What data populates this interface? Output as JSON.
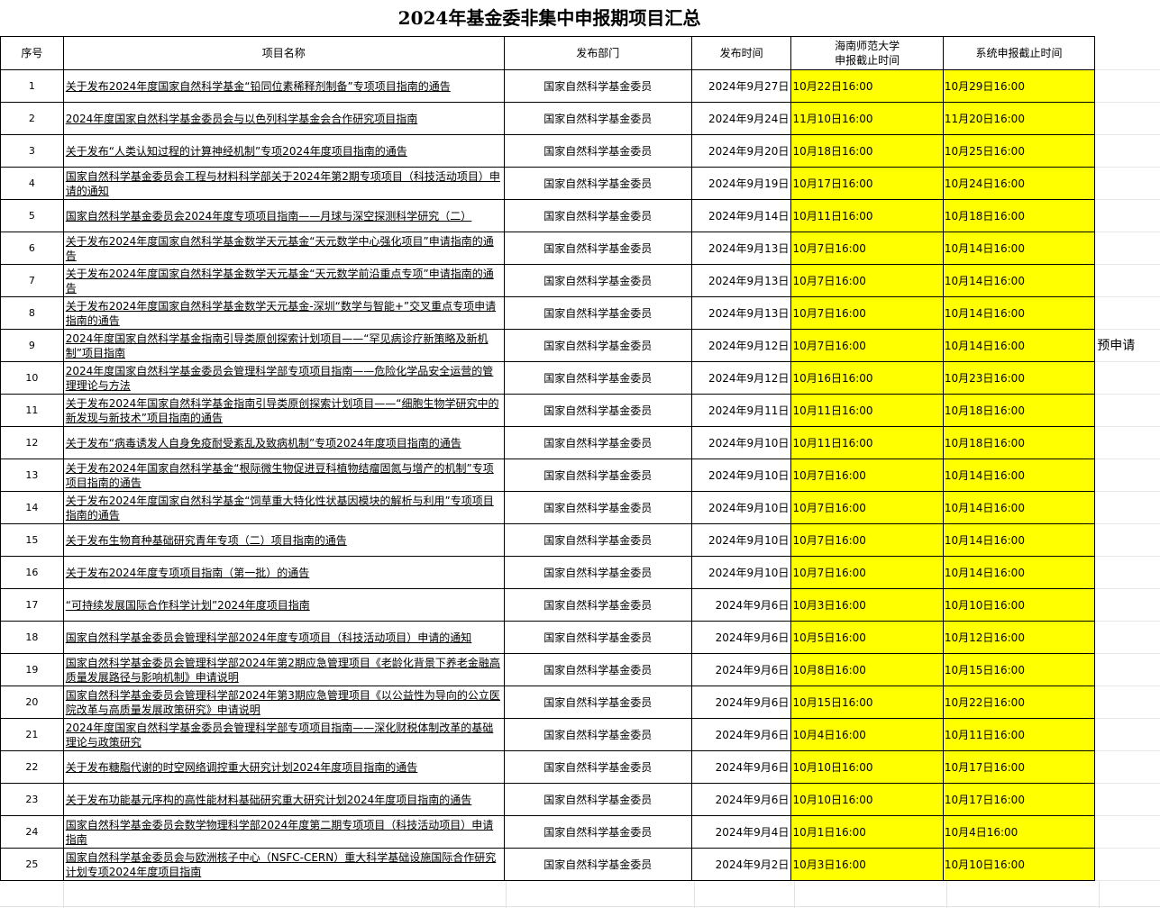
{
  "title": "2024年基金委非集中申报期项目汇总",
  "headers": {
    "no": "序号",
    "name": "项目名称",
    "dept": "发布部门",
    "date": "发布时间",
    "hnnu_deadline_1": "海南师范大学",
    "hnnu_deadline_2": "申报截止时间",
    "system_deadline": "系统申报截止时间"
  },
  "highlight_color": "#ffff00",
  "rows": [
    {
      "no": "1",
      "name": "关于发布2024年度国家自然科学基金“铅同位素稀释剂制备”专项项目指南的通告",
      "dept": "国家自然科学基金委员",
      "date": "2024年9月27日",
      "hnnu": "10月22日16:00",
      "system": "10月29日16:00",
      "note": ""
    },
    {
      "no": "2",
      "name": "2024年度国家自然科学基金委员会与以色列科学基金会合作研究项目指南",
      "dept": "国家自然科学基金委员",
      "date": "2024年9月24日",
      "hnnu": "11月10日16:00",
      "system": "11月20日16:00",
      "note": ""
    },
    {
      "no": "3",
      "name": "关于发布“人类认知过程的计算神经机制”专项2024年度项目指南的通告",
      "dept": "国家自然科学基金委员",
      "date": "2024年9月20日",
      "hnnu": "10月18日16:00",
      "system": "10月25日16:00",
      "note": ""
    },
    {
      "no": "4",
      "name": "国家自然科学基金委员会工程与材料科学部关于2024年第2期专项项目（科技活动项目）申请的通知",
      "dept": "国家自然科学基金委员",
      "date": "2024年9月19日",
      "hnnu": "10月17日16:00",
      "system": "10月24日16:00",
      "note": ""
    },
    {
      "no": "5",
      "name": "国家自然科学基金委员会2024年度专项项目指南——月球与深空探测科学研究（二）",
      "dept": "国家自然科学基金委员",
      "date": "2024年9月14日",
      "hnnu": "10月11日16:00",
      "system": "10月18日16:00",
      "note": ""
    },
    {
      "no": "6",
      "name": "关于发布2024年度国家自然科学基金数学天元基金“天元数学中心强化项目”申请指南的通告",
      "dept": "国家自然科学基金委员",
      "date": "2024年9月13日",
      "hnnu": "10月7日16:00",
      "system": "10月14日16:00",
      "note": ""
    },
    {
      "no": "7",
      "name": "关于发布2024年度国家自然科学基金数学天元基金“天元数学前沿重点专项”申请指南的通告",
      "dept": "国家自然科学基金委员",
      "date": "2024年9月13日",
      "hnnu": "10月7日16:00",
      "system": "10月14日16:00",
      "note": ""
    },
    {
      "no": "8",
      "name": "关于发布2024年度国家自然科学基金数学天元基金-深圳“数学与智能+”交叉重点专项申请指南的通告",
      "dept": "国家自然科学基金委员",
      "date": "2024年9月13日",
      "hnnu": "10月7日16:00",
      "system": "10月14日16:00",
      "note": ""
    },
    {
      "no": "9",
      "name": "2024年度国家自然科学基金指南引导类原创探索计划项目——“罕见病诊疗新策略及新机制”项目指南",
      "dept": "国家自然科学基金委员",
      "date": "2024年9月12日",
      "hnnu": "10月7日16:00",
      "system": "10月14日16:00",
      "note": "预申请"
    },
    {
      "no": "10",
      "name": "2024年度国家自然科学基金委员会管理科学部专项项目指南——危险化学品安全运营的管理理论与方法",
      "dept": "国家自然科学基金委员",
      "date": "2024年9月12日",
      "hnnu": "10月16日16:00",
      "system": "10月23日16:00",
      "note": ""
    },
    {
      "no": "11",
      "name": "关于发布2024年国家自然科学基金指南引导类原创探索计划项目——“细胞生物学研究中的新发现与新技术”项目指南的通告",
      "dept": "国家自然科学基金委员",
      "date": "2024年9月11日",
      "hnnu": "10月11日16:00",
      "system": "10月18日16:00",
      "note": ""
    },
    {
      "no": "12",
      "name": "关于发布“病毒诱发人自身免疫耐受紊乱及致病机制”专项2024年度项目指南的通告",
      "dept": "国家自然科学基金委员",
      "date": "2024年9月10日",
      "hnnu": "10月11日16:00",
      "system": "10月18日16:00",
      "note": ""
    },
    {
      "no": "13",
      "name": "关于发布2024年国家自然科学基金“根际微生物促进豆科植物结瘤固氮与增产的机制”专项项目指南的通告",
      "dept": "国家自然科学基金委员",
      "date": "2024年9月10日",
      "hnnu": "10月7日16:00",
      "system": "10月14日16:00",
      "note": ""
    },
    {
      "no": "14",
      "name": "关于发布2024年度国家自然科学基金“饲草重大特化性状基因模块的解析与利用”专项项目指南的通告",
      "dept": "国家自然科学基金委员",
      "date": "2024年9月10日",
      "hnnu": "10月7日16:00",
      "system": "10月14日16:00",
      "note": ""
    },
    {
      "no": "15",
      "name": "关于发布生物育种基础研究青年专项（二）项目指南的通告",
      "dept": "国家自然科学基金委员",
      "date": "2024年9月10日",
      "hnnu": "10月7日16:00",
      "system": "10月14日16:00",
      "note": ""
    },
    {
      "no": "16",
      "name": "关于发布2024年度专项项目指南（第一批）的通告",
      "dept": "国家自然科学基金委员",
      "date": "2024年9月10日",
      "hnnu": "10月7日16:00",
      "system": "10月14日16:00",
      "note": ""
    },
    {
      "no": "17",
      "name": "“可持续发展国际合作科学计划”2024年度项目指南",
      "dept": "国家自然科学基金委员",
      "date": "2024年9月6日",
      "hnnu": "10月3日16:00",
      "system": "10月10日16:00",
      "note": ""
    },
    {
      "no": "18",
      "name": "国家自然科学基金委员会管理科学部2024年度专项项目（科技活动项目）申请的通知",
      "dept": "国家自然科学基金委员",
      "date": "2024年9月6日",
      "hnnu": "10月5日16:00",
      "system": "10月12日16:00",
      "note": ""
    },
    {
      "no": "19",
      "name": "国家自然科学基金委员会管理科学部2024年第2期应急管理项目《老龄化背景下养老金融高质量发展路径与影响机制》申请说明",
      "dept": "国家自然科学基金委员",
      "date": "2024年9月6日",
      "hnnu": "10月8日16:00",
      "system": "10月15日16:00",
      "note": ""
    },
    {
      "no": "20",
      "name": "国家自然科学基金委员会管理科学部2024年第3期应急管理项目《以公益性为导向的公立医院改革与高质量发展政策研究》申请说明",
      "dept": "国家自然科学基金委员",
      "date": "2024年9月6日",
      "hnnu": "10月15日16:00",
      "system": "10月22日16:00",
      "note": ""
    },
    {
      "no": "21",
      "name": "2024年度国家自然科学基金委员会管理科学部专项项目指南——深化财税体制改革的基础理论与政策研究",
      "dept": "国家自然科学基金委员",
      "date": "2024年9月6日",
      "hnnu": "10月4日16:00",
      "system": "10月11日16:00",
      "note": ""
    },
    {
      "no": "22",
      "name": "关于发布糖脂代谢的时空网络调控重大研究计划2024年度项目指南的通告",
      "dept": "国家自然科学基金委员",
      "date": "2024年9月6日",
      "hnnu": "10月10日16:00",
      "system": "10月17日16:00",
      "note": ""
    },
    {
      "no": "23",
      "name": "关于发布功能基元序构的高性能材料基础研究重大研究计划2024年度项目指南的通告",
      "dept": "国家自然科学基金委员",
      "date": "2024年9月6日",
      "hnnu": "10月10日16:00",
      "system": "10月17日16:00",
      "note": ""
    },
    {
      "no": "24",
      "name": "国家自然科学基金委员会数学物理科学部2024年度第二期专项项目（科技活动项目）申请指南",
      "dept": "国家自然科学基金委员",
      "date": "2024年9月4日",
      "hnnu": "10月1日16:00",
      "system": "10月4日16:00",
      "note": ""
    },
    {
      "no": "25",
      "name": "国家自然科学基金委员会与欧洲核子中心（NSFC-CERN）重大科学基础设施国际合作研究计划专项2024年度项目指南",
      "dept": "国家自然科学基金委员",
      "date": "2024年9月2日",
      "hnnu": "10月3日16:00",
      "system": "10月10日16:00",
      "note": ""
    }
  ]
}
